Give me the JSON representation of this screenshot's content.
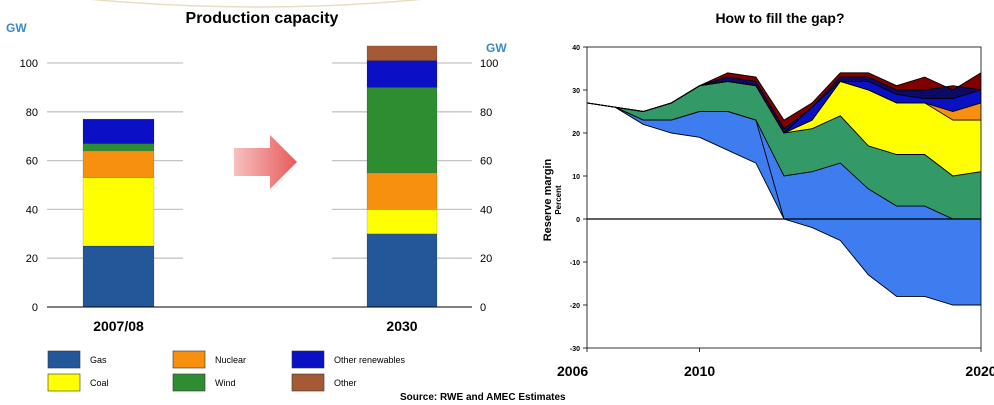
{
  "source": "Source:  RWE and AMEC Estimates",
  "colors": {
    "gas": "#23579a",
    "coal": "#ffff00",
    "nuclear": "#f7900e",
    "wind": "#2f8d31",
    "other_renewables": "#0b10c4",
    "other": "#a55a35",
    "light_blue": "#3d7df0",
    "area_green": "#339966",
    "dark_red": "#800000",
    "navy": "#0b0b66",
    "gw_label": "#3a89c9",
    "arrow": "#ec6c6c"
  },
  "chart_data": [
    {
      "type": "bar",
      "stacked": true,
      "title": "Production capacity",
      "unit_label": "GW",
      "categories": [
        "2007/08",
        "2030"
      ],
      "ylim": [
        0,
        100
      ],
      "yticks": [
        "0",
        "20",
        "40",
        "60",
        "80",
        "100"
      ],
      "grid": true,
      "series": [
        {
          "name": "Gas",
          "key": "gas",
          "values": [
            25,
            30
          ]
        },
        {
          "name": "Coal",
          "key": "coal",
          "values": [
            28,
            10
          ]
        },
        {
          "name": "Nuclear",
          "key": "nuclear",
          "values": [
            11,
            15
          ]
        },
        {
          "name": "Wind",
          "key": "wind",
          "values": [
            3,
            35
          ]
        },
        {
          "name": "Other renewables",
          "key": "other_renewables",
          "values": [
            10,
            11
          ]
        },
        {
          "name": "Other",
          "key": "other",
          "values": [
            0,
            6
          ]
        }
      ],
      "legend": [
        {
          "label": "Gas",
          "key": "gas"
        },
        {
          "label": "Nuclear",
          "key": "nuclear"
        },
        {
          "label": "Other renewables",
          "key": "other_renewables"
        },
        {
          "label": "Coal",
          "key": "coal"
        },
        {
          "label": "Wind",
          "key": "wind"
        },
        {
          "label": "Other",
          "key": "other"
        }
      ],
      "legend_position": "bottom"
    },
    {
      "type": "area",
      "stacked": true,
      "title": "How to fill the gap?",
      "ylabel": "Reserve margin",
      "ylabel_sub": "Percent",
      "xlim": [
        2006,
        2020
      ],
      "ylim": [
        -30,
        40
      ],
      "yticks": [
        "-30",
        "-20",
        "-10",
        "0",
        "10",
        "20",
        "30",
        "40"
      ],
      "xticks": [
        "2006",
        "2010",
        "2020"
      ],
      "zero_line": true,
      "boundaries": {
        "x": [
          2006,
          2007,
          2008,
          2009,
          2010,
          2011,
          2012,
          2013,
          2014,
          2015,
          2016,
          2017,
          2018,
          2019,
          2020
        ],
        "lines": [
          {
            "values": [
              27,
              26,
              22,
              20,
              19,
              16,
              13,
              0,
              -2,
              -5,
              -13,
              -18,
              -18,
              -20,
              -20
            ]
          },
          {
            "values": [
              27,
              26,
              23,
              23,
              25,
              25,
              23,
              0,
              0,
              0,
              0,
              0,
              0,
              0,
              0
            ]
          },
          {
            "values": [
              27,
              26,
              23,
              23,
              25,
              25,
              23,
              10,
              11,
              13,
              7,
              3,
              3,
              0,
              0
            ]
          },
          {
            "values": [
              27,
              26,
              25,
              27,
              31,
              32,
              31,
              20,
              21,
              24,
              17,
              15,
              15,
              10,
              11
            ]
          },
          {
            "values": [
              27,
              26,
              25,
              27,
              31,
              32,
              31,
              20,
              23,
              32,
              30,
              27,
              27,
              23,
              23
            ]
          },
          {
            "values": [
              27,
              26,
              25,
              27,
              31,
              32,
              31,
              20,
              23,
              32,
              30,
              27,
              27,
              25,
              27
            ]
          },
          {
            "values": [
              27,
              26,
              25,
              27,
              31,
              32,
              31,
              20,
              26,
              32,
              32,
              29,
              28,
              28,
              30
            ]
          },
          {
            "values": [
              27,
              26,
              25,
              27,
              31,
              33,
              32,
              21,
              26,
              33,
              33,
              30,
              30,
              31,
              30
            ]
          },
          {
            "values": [
              27,
              26,
              25,
              27,
              31,
              34,
              33,
              23,
              27,
              34,
              34,
              31,
              33,
              30,
              34
            ]
          }
        ],
        "fills": [
          "light_blue",
          "light_blue",
          "area_green",
          "coal",
          "nuclear",
          "other_renewables",
          "navy",
          "dark_red"
        ]
      }
    }
  ]
}
